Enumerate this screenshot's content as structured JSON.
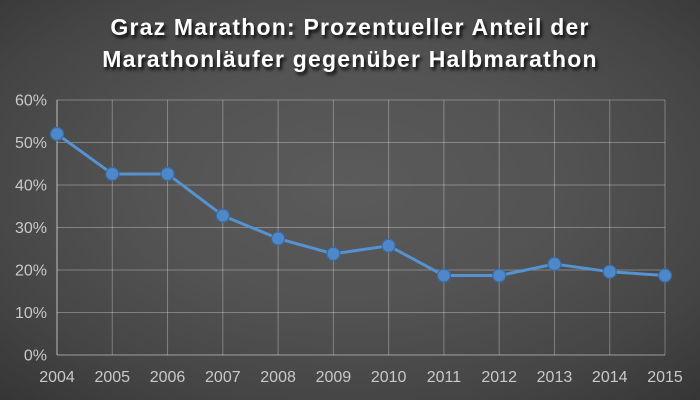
{
  "title_lines": [
    "Graz Marathon: Prozentueller Anteil der",
    "Marathonläufer gegenüber Halbmarathon"
  ],
  "colors": {
    "title_text": "#ffffff",
    "axis_text": "#c9c9c9",
    "gridline": "rgba(255,255,255,0.30)",
    "axis_line": "rgba(255,255,255,0.48)",
    "series_line": "#5592d2",
    "marker_fill": "#4e88c8",
    "marker_stroke": "#3a6ba2",
    "background_center": "#5b5b5b",
    "background_edge": "#262626"
  },
  "chart_data": {
    "type": "line",
    "title": "Graz Marathon: Prozentueller Anteil der Marathonläufer gegenüber Halbmarathon",
    "categories": [
      "2004",
      "2005",
      "2006",
      "2007",
      "2008",
      "2009",
      "2010",
      "2011",
      "2012",
      "2013",
      "2014",
      "2015"
    ],
    "values": [
      52,
      42.6,
      42.6,
      32.8,
      27.4,
      23.8,
      25.7,
      18.7,
      18.7,
      21.4,
      19.6,
      18.7
    ],
    "xlabel": "",
    "ylabel": "",
    "ylim": [
      0,
      60
    ],
    "ytick_labels": [
      "0%",
      "10%",
      "20%",
      "30%",
      "40%",
      "50%",
      "60%"
    ],
    "grid": true,
    "legend": false,
    "marker": "circle"
  }
}
